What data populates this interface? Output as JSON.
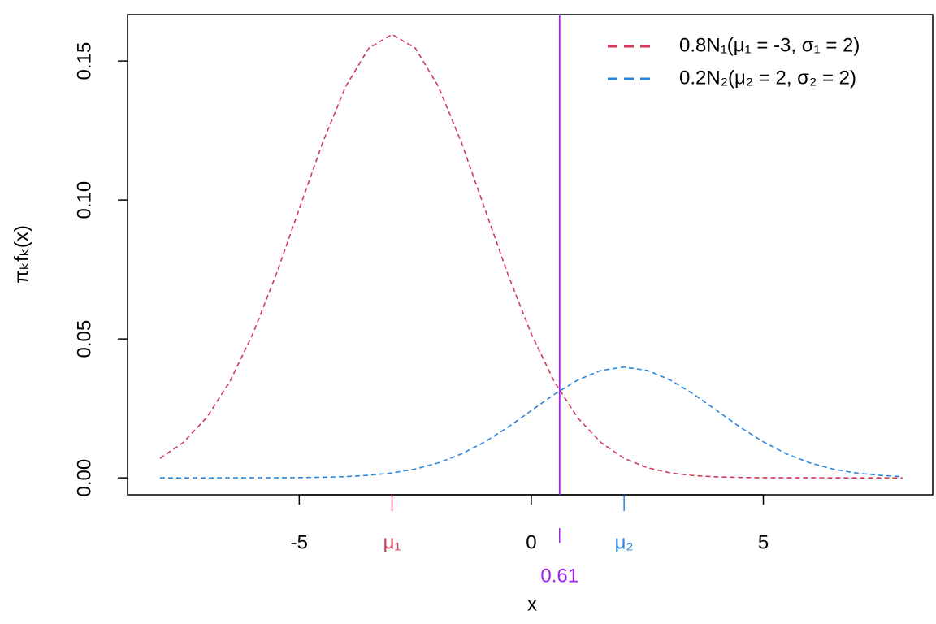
{
  "chart_data": {
    "type": "line",
    "x_label": "x",
    "y_label": "πₖfₖ(x)",
    "x": [
      -8,
      -7.5,
      -7,
      -6.5,
      -6,
      -5.5,
      -5,
      -4.5,
      -4,
      -3.5,
      -3,
      -2.5,
      -2,
      -1.5,
      -1,
      -0.5,
      0,
      0.5,
      1,
      1.5,
      2,
      2.5,
      3,
      3.5,
      4,
      4.5,
      5,
      5.5,
      6,
      6.5,
      7,
      7.5,
      8
    ],
    "series": [
      {
        "name": "0.8N₁(μ₁ = -3, σ₁ = 2)",
        "color": "#d03a5a",
        "values": [
          0.00701,
          0.0127,
          0.0216,
          0.03451,
          0.05181,
          0.07306,
          0.09679,
          0.12046,
          0.14083,
          0.15467,
          0.15958,
          0.15467,
          0.14083,
          0.12046,
          0.09679,
          0.07306,
          0.05181,
          0.03451,
          0.0216,
          0.0127,
          0.00701,
          0.00364,
          0.00177,
          0.00081,
          0.00035,
          0.00014,
          5e-05,
          2e-05,
          1e-05,
          0,
          0,
          0,
          0
        ]
      },
      {
        "name": "0.2N₂(μ₂ = 2, σ₂ = 2)",
        "color": "#2a86de",
        "values": [
          0,
          0,
          0,
          5e-06,
          1.3e-05,
          3.5e-05,
          8.7e-05,
          0.0002,
          0.00044,
          0.00091,
          0.00175,
          0.00317,
          0.0054,
          0.00863,
          0.01295,
          0.01826,
          0.0242,
          0.03011,
          0.03521,
          0.03867,
          0.03989,
          0.03867,
          0.03521,
          0.03011,
          0.0242,
          0.01826,
          0.01295,
          0.00863,
          0.0054,
          0.00317,
          0.00175,
          0.00091,
          0.00044
        ]
      }
    ],
    "xlim": [
      -8.7,
      8.65
    ],
    "ylim": [
      -0.0061,
      0.1667
    ],
    "xticks": [
      -5,
      0,
      5
    ],
    "yticks": [
      {
        "value": 0,
        "label": "0.00"
      },
      {
        "value": 0.05,
        "label": "0.05"
      },
      {
        "value": 0.1,
        "label": "0.10"
      },
      {
        "value": 0.15,
        "label": "0.15"
      }
    ],
    "mean_ticks": [
      {
        "value": -3,
        "label": "μ₁",
        "color": "#d03a5a"
      },
      {
        "value": 2,
        "label": "μ₂",
        "color": "#2a86de"
      }
    ],
    "threshold": {
      "value": 0.61,
      "color": "#a020f0"
    },
    "legend": "top-right"
  }
}
